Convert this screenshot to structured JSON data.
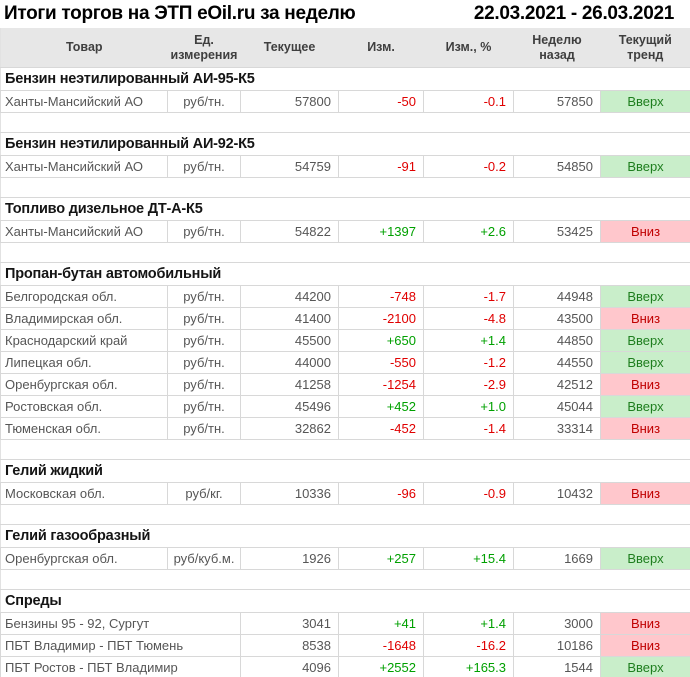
{
  "title": "Итоги торгов на ЭТП eOil.ru за неделю",
  "date_range": "22.03.2021 - 26.03.2021",
  "columns": [
    {
      "key": "product",
      "label": "Товар"
    },
    {
      "key": "unit",
      "label": "Ед.\nизмерения"
    },
    {
      "key": "current",
      "label": "Текущее"
    },
    {
      "key": "change",
      "label": "Изм."
    },
    {
      "key": "change-pct",
      "label": "Изм., %"
    },
    {
      "key": "week-ago",
      "label": "Неделю\nназад"
    },
    {
      "key": "trend",
      "label": "Текущий\nтренд"
    }
  ],
  "trend_labels": {
    "up": "Вверх",
    "down": "Вниз"
  },
  "colors": {
    "header_bg": "#e7e7e7",
    "positive": "#00a000",
    "negative": "#e00000",
    "trend_up_bg": "#c9eeca",
    "trend_up_text": "#1e7e1e",
    "trend_down_bg": "#ffc7cc",
    "trend_down_text": "#c00000"
  },
  "sections": [
    {
      "name": "Бензин неэтилированный АИ-95-К5",
      "rows": [
        {
          "product": "Ханты-Мансийский АО",
          "unit": "руб/тн.",
          "current": "57800",
          "change": "-50",
          "change_pct": "-0.1",
          "week_ago": "57850",
          "trend": "Вверх"
        }
      ]
    },
    {
      "name": "Бензин неэтилированный АИ-92-К5",
      "rows": [
        {
          "product": "Ханты-Мансийский АО",
          "unit": "руб/тн.",
          "current": "54759",
          "change": "-91",
          "change_pct": "-0.2",
          "week_ago": "54850",
          "trend": "Вверх"
        }
      ]
    },
    {
      "name": "Топливо дизельное ДТ-А-К5",
      "rows": [
        {
          "product": "Ханты-Мансийский АО",
          "unit": "руб/тн.",
          "current": "54822",
          "change": "+1397",
          "change_pct": "+2.6",
          "week_ago": "53425",
          "trend": "Вниз"
        }
      ]
    },
    {
      "name": "Пропан-бутан автомобильный",
      "rows": [
        {
          "product": "Белгородская обл.",
          "unit": "руб/тн.",
          "current": "44200",
          "change": "-748",
          "change_pct": "-1.7",
          "week_ago": "44948",
          "trend": "Вверх"
        },
        {
          "product": "Владимирская обл.",
          "unit": "руб/тн.",
          "current": "41400",
          "change": "-2100",
          "change_pct": "-4.8",
          "week_ago": "43500",
          "trend": "Вниз"
        },
        {
          "product": "Краснодарский край",
          "unit": "руб/тн.",
          "current": "45500",
          "change": "+650",
          "change_pct": "+1.4",
          "week_ago": "44850",
          "trend": "Вверх"
        },
        {
          "product": "Липецкая обл.",
          "unit": "руб/тн.",
          "current": "44000",
          "change": "-550",
          "change_pct": "-1.2",
          "week_ago": "44550",
          "trend": "Вверх"
        },
        {
          "product": "Оренбургская обл.",
          "unit": "руб/тн.",
          "current": "41258",
          "change": "-1254",
          "change_pct": "-2.9",
          "week_ago": "42512",
          "trend": "Вниз"
        },
        {
          "product": "Ростовская обл.",
          "unit": "руб/тн.",
          "current": "45496",
          "change": "+452",
          "change_pct": "+1.0",
          "week_ago": "45044",
          "trend": "Вверх"
        },
        {
          "product": "Тюменская обл.",
          "unit": "руб/тн.",
          "current": "32862",
          "change": "-452",
          "change_pct": "-1.4",
          "week_ago": "33314",
          "trend": "Вниз"
        }
      ]
    },
    {
      "name": "Гелий жидкий",
      "rows": [
        {
          "product": "Московская обл.",
          "unit": "руб/кг.",
          "current": "10336",
          "change": "-96",
          "change_pct": "-0.9",
          "week_ago": "10432",
          "trend": "Вниз"
        }
      ]
    },
    {
      "name": "Гелий газообразный",
      "rows": [
        {
          "product": "Оренбургская обл.",
          "unit": "руб/куб.м.",
          "current": "1926",
          "change": "+257",
          "change_pct": "+15.4",
          "week_ago": "1669",
          "trend": "Вверх"
        }
      ]
    },
    {
      "name": "Спреды",
      "rows": [
        {
          "product": "Бензины 95 - 92, Сургут",
          "unit": null,
          "current": "3041",
          "change": "+41",
          "change_pct": "+1.4",
          "week_ago": "3000",
          "trend": "Вниз"
        },
        {
          "product": "ПБТ Владимир - ПБТ Тюмень",
          "unit": null,
          "current": "8538",
          "change": "-1648",
          "change_pct": "-16.2",
          "week_ago": "10186",
          "trend": "Вниз"
        },
        {
          "product": "ПБТ Ростов - ПБТ Владимир",
          "unit": null,
          "current": "4096",
          "change": "+2552",
          "change_pct": "+165.3",
          "week_ago": "1544",
          "trend": "Вверх"
        }
      ]
    }
  ]
}
